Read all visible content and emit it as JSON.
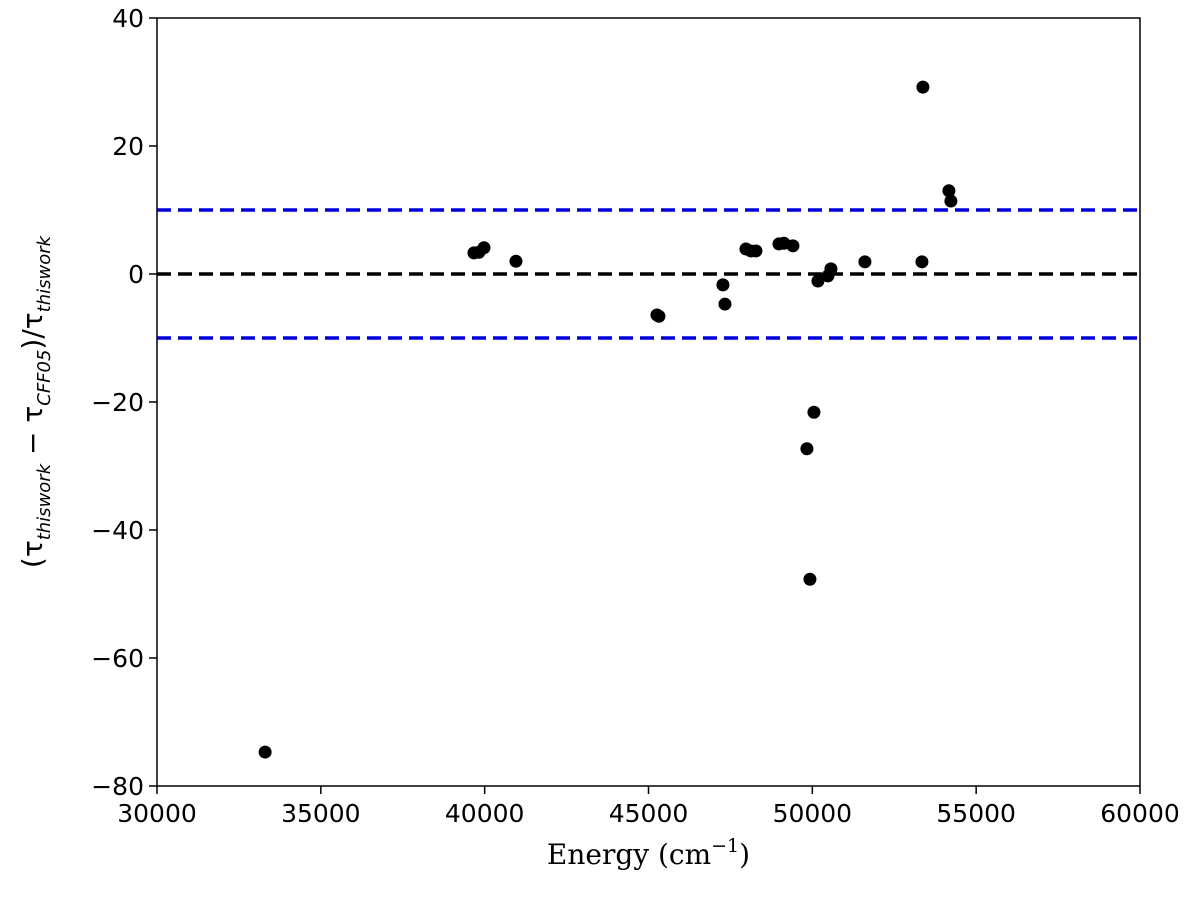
{
  "chart_data": {
    "type": "scatter",
    "x_label_parts": [
      "Energy (cm",
      "−1",
      ")"
    ],
    "y_label_parts": [
      "(τ",
      "thiswork",
      " − τ",
      "CFF05",
      ")/τ",
      "thiswork"
    ],
    "x": [
      33300,
      39674,
      39826,
      39979,
      40955,
      45258,
      45319,
      47272,
      47333,
      47974,
      48126,
      48279,
      48981,
      49134,
      49408,
      49835,
      50049,
      49927,
      50171,
      50476,
      50568,
      51605,
      53345,
      53375,
      54168,
      54229
    ],
    "values": [
      -74.7,
      3.3,
      3.4,
      4.1,
      2.0,
      -6.4,
      -6.6,
      -1.7,
      -4.7,
      3.9,
      3.6,
      3.6,
      4.7,
      4.8,
      4.4,
      -27.3,
      -21.6,
      -47.7,
      -1.1,
      -0.3,
      0.8,
      1.9,
      1.9,
      29.2,
      13.0,
      11.4
    ],
    "color": "#000000",
    "hlines": [
      {
        "y": 0,
        "color": "#000000"
      },
      {
        "y": 10,
        "color": "#0000dd"
      },
      {
        "y": -10,
        "color": "#0000dd"
      }
    ],
    "xlim": [
      30000,
      60000
    ],
    "ylim": [
      -80,
      40
    ],
    "xticks": [
      30000,
      35000,
      40000,
      45000,
      50000,
      55000,
      60000
    ],
    "yticks": [
      {
        "value": -80,
        "label": "−80"
      },
      {
        "value": -60,
        "label": "−60"
      },
      {
        "value": -40,
        "label": "−40"
      },
      {
        "value": -20,
        "label": "−20"
      },
      0,
      20,
      40
    ],
    "grid": false
  }
}
